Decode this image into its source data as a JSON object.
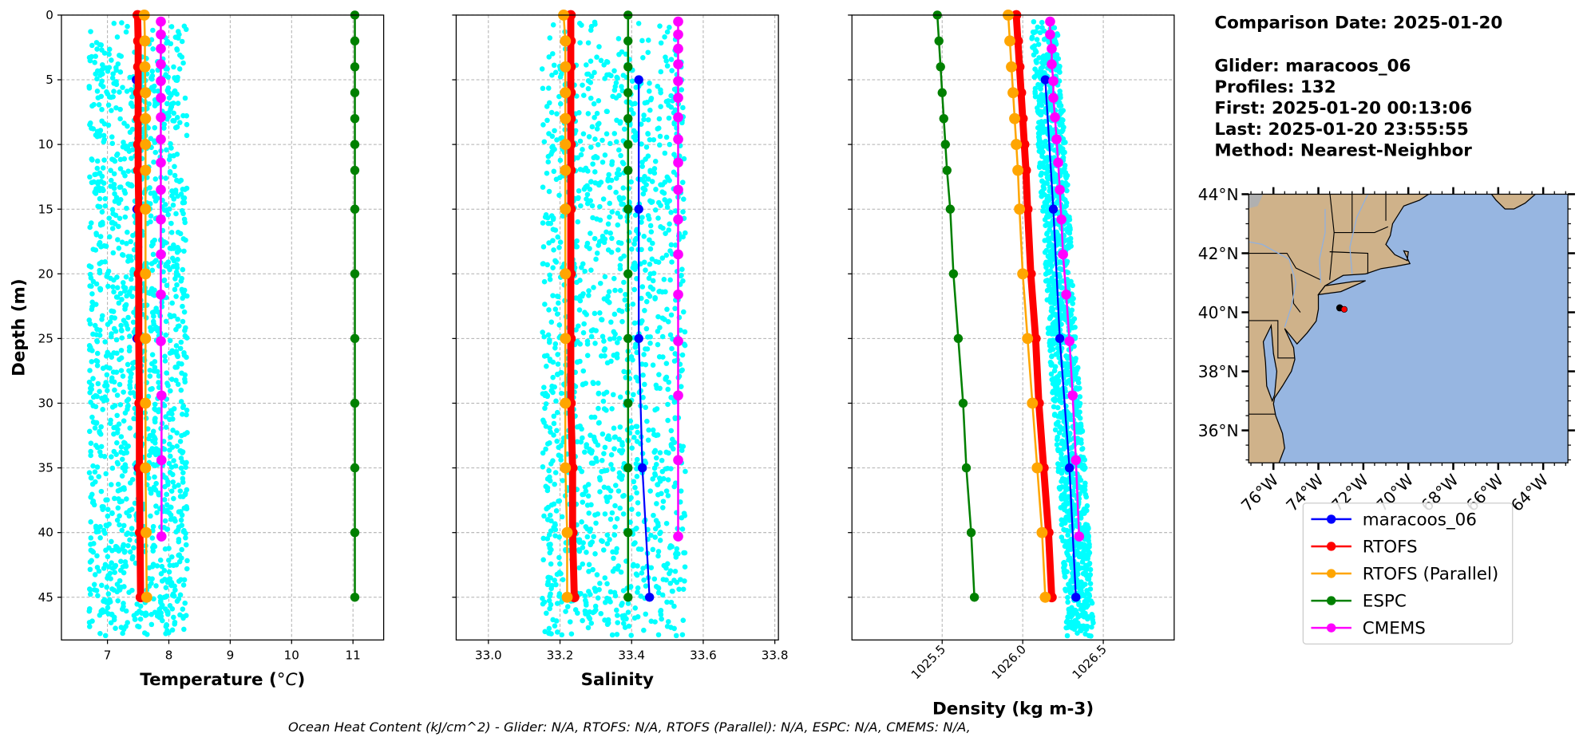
{
  "info": {
    "comparison_date": "Comparison Date: 2025-01-20",
    "glider": "Glider: maracoos_06",
    "profiles": "Profiles: 132",
    "first": "First: 2025-01-20 00:13:06",
    "last": "Last: 2025-01-20 23:55:55",
    "method": "Method: Nearest-Neighbor"
  },
  "footer": "Ocean Heat Content (kJ/cm^2) - Glider: N/A,  RTOFS: N/A,  RTOFS (Parallel): N/A,  ESPC: N/A,  CMEMS: N/A,",
  "colors": {
    "glider": "#0000ff",
    "rtofs": "#ff0000",
    "rtofs_parallel": "#ffa500",
    "espc": "#008000",
    "cmems": "#ff00ff",
    "scatter": "#00ffff",
    "land": "#cfb28a",
    "ocean": "#97b6e1"
  },
  "legend": [
    "maracoos_06",
    "RTOFS",
    "RTOFS (Parallel)",
    "ESPC",
    "CMEMS"
  ],
  "chart_data": [
    {
      "type": "line",
      "xlabel": "Temperature (",
      "xlabel_unit": "°C",
      "xlabel_close": ")",
      "ylabel": "Depth (m)",
      "xlim": [
        6.25,
        11.5
      ],
      "ylim": [
        48.3,
        0
      ],
      "xticks": [
        "7",
        "8",
        "9",
        "10",
        "11"
      ],
      "yticks": [
        "0",
        "5",
        "10",
        "15",
        "20",
        "25",
        "30",
        "35",
        "40",
        "45"
      ],
      "grid": true,
      "glider_scatter_range": [
        6.7,
        8.3
      ],
      "series": [
        {
          "name": "maracoos_06",
          "depth": [
            5,
            15,
            25,
            35,
            45
          ],
          "values": [
            7.47,
            7.48,
            7.48,
            7.5,
            7.58
          ]
        },
        {
          "name": "RTOFS",
          "depth": [
            0,
            2,
            4,
            6,
            8,
            10,
            12,
            15,
            20,
            25,
            30,
            35,
            40,
            45
          ],
          "values": [
            7.49,
            7.5,
            7.5,
            7.5,
            7.5,
            7.5,
            7.5,
            7.51,
            7.51,
            7.51,
            7.52,
            7.52,
            7.53,
            7.54
          ]
        },
        {
          "name": "RTOFS (Parallel)",
          "depth": [
            0,
            2,
            4,
            6,
            8,
            10,
            12,
            15,
            20,
            25,
            30,
            35,
            40,
            45
          ],
          "values": [
            7.6,
            7.61,
            7.61,
            7.62,
            7.62,
            7.62,
            7.62,
            7.62,
            7.62,
            7.62,
            7.62,
            7.62,
            7.63,
            7.64
          ]
        },
        {
          "name": "ESPC",
          "depth": [
            0,
            2,
            4,
            6,
            8,
            10,
            12,
            15,
            20,
            25,
            30,
            35,
            40,
            45
          ],
          "values": [
            11.03,
            11.03,
            11.03,
            11.03,
            11.03,
            11.03,
            11.03,
            11.03,
            11.03,
            11.03,
            11.03,
            11.03,
            11.03,
            11.03
          ]
        },
        {
          "name": "CMEMS",
          "depth": [
            0.5,
            1.5,
            2.6,
            3.8,
            5.1,
            6.4,
            7.9,
            9.6,
            11.4,
            13.5,
            15.8,
            18.5,
            21.6,
            25.2,
            29.4,
            34.4,
            40.3
          ],
          "values": [
            7.87,
            7.87,
            7.87,
            7.87,
            7.87,
            7.87,
            7.87,
            7.87,
            7.87,
            7.87,
            7.87,
            7.87,
            7.87,
            7.87,
            7.88,
            7.88,
            7.88
          ]
        }
      ]
    },
    {
      "type": "line",
      "xlabel": "Salinity",
      "xlim": [
        32.91,
        33.81
      ],
      "ylim": [
        48.3,
        0
      ],
      "xticks": [
        "33.0",
        "33.2",
        "33.4",
        "33.6",
        "33.8"
      ],
      "grid": true,
      "glider_scatter_range": [
        33.15,
        33.55
      ],
      "series": [
        {
          "name": "maracoos_06",
          "depth": [
            5,
            15,
            25,
            35,
            45
          ],
          "values": [
            33.42,
            33.42,
            33.42,
            33.43,
            33.45
          ]
        },
        {
          "name": "RTOFS",
          "depth": [
            0,
            2,
            4,
            6,
            8,
            10,
            12,
            15,
            20,
            25,
            30,
            35,
            40,
            45
          ],
          "values": [
            33.23,
            33.23,
            33.23,
            33.23,
            33.23,
            33.23,
            33.23,
            33.23,
            33.23,
            33.23,
            33.23,
            33.235,
            33.235,
            33.24
          ]
        },
        {
          "name": "RTOFS (Parallel)",
          "depth": [
            0,
            2,
            4,
            6,
            8,
            10,
            12,
            15,
            20,
            25,
            30,
            35,
            40,
            45
          ],
          "values": [
            33.21,
            33.215,
            33.215,
            33.215,
            33.215,
            33.215,
            33.215,
            33.215,
            33.215,
            33.215,
            33.215,
            33.215,
            33.22,
            33.22
          ]
        },
        {
          "name": "ESPC",
          "depth": [
            0,
            2,
            4,
            6,
            8,
            10,
            12,
            15,
            20,
            25,
            30,
            35,
            40,
            45
          ],
          "values": [
            33.39,
            33.39,
            33.39,
            33.39,
            33.39,
            33.39,
            33.39,
            33.39,
            33.39,
            33.39,
            33.39,
            33.39,
            33.39,
            33.39
          ]
        },
        {
          "name": "CMEMS",
          "depth": [
            0.5,
            1.5,
            2.6,
            3.8,
            5.1,
            6.4,
            7.9,
            9.6,
            11.4,
            13.5,
            15.8,
            18.5,
            21.6,
            25.2,
            29.4,
            34.4,
            40.3
          ],
          "values": [
            33.53,
            33.53,
            33.53,
            33.53,
            33.53,
            33.53,
            33.53,
            33.53,
            33.53,
            33.53,
            33.53,
            33.53,
            33.53,
            33.53,
            33.53,
            33.53,
            33.53
          ]
        }
      ]
    },
    {
      "type": "line",
      "xlabel": "Density (kg m-3)",
      "xlim": [
        1024.94,
        1026.94
      ],
      "ylim": [
        48.3,
        0
      ],
      "xticks": [
        "1025.5",
        "1026.0",
        "1026.5"
      ],
      "grid": true,
      "glider_scatter_offset": [
        -0.07,
        0.1
      ],
      "series": [
        {
          "name": "maracoos_06",
          "depth": [
            5,
            15,
            25,
            35,
            45
          ],
          "values": [
            1026.14,
            1026.19,
            1026.23,
            1026.29,
            1026.33
          ]
        },
        {
          "name": "RTOFS",
          "depth": [
            0,
            2,
            4,
            6,
            8,
            10,
            12,
            15,
            20,
            25,
            30,
            35,
            40,
            45
          ],
          "values": [
            1025.96,
            1025.97,
            1025.98,
            1025.99,
            1026.0,
            1026.01,
            1026.02,
            1026.03,
            1026.05,
            1026.08,
            1026.1,
            1026.13,
            1026.16,
            1026.18
          ]
        },
        {
          "name": "RTOFS (Parallel)",
          "depth": [
            0,
            2,
            4,
            6,
            8,
            10,
            12,
            15,
            20,
            25,
            30,
            35,
            40,
            45
          ],
          "values": [
            1025.91,
            1025.92,
            1025.93,
            1025.94,
            1025.95,
            1025.96,
            1025.97,
            1025.98,
            1026.0,
            1026.03,
            1026.06,
            1026.09,
            1026.12,
            1026.14
          ]
        },
        {
          "name": "ESPC",
          "depth": [
            0,
            2,
            4,
            6,
            8,
            10,
            12,
            15,
            20,
            25,
            30,
            35,
            40,
            45
          ],
          "values": [
            1025.47,
            1025.48,
            1025.49,
            1025.5,
            1025.51,
            1025.52,
            1025.53,
            1025.55,
            1025.57,
            1025.6,
            1025.63,
            1025.65,
            1025.68,
            1025.7
          ]
        },
        {
          "name": "CMEMS",
          "depth": [
            0.5,
            1.5,
            2.6,
            3.8,
            5.1,
            6.4,
            7.9,
            9.6,
            11.4,
            13.5,
            15.8,
            18.5,
            21.6,
            25.2,
            29.4,
            34.4,
            40.3
          ],
          "values": [
            1026.17,
            1026.17,
            1026.18,
            1026.18,
            1026.19,
            1026.19,
            1026.2,
            1026.21,
            1026.22,
            1026.23,
            1026.24,
            1026.25,
            1026.27,
            1026.29,
            1026.31,
            1026.33,
            1026.35
          ]
        }
      ]
    },
    {
      "type": "map",
      "lon_range": [
        -77.1,
        -62.9
      ],
      "lat_range": [
        34.9,
        44.0
      ],
      "lat_ticks": [
        "36°N",
        "38°N",
        "40°N",
        "42°N",
        "44°N"
      ],
      "lon_ticks": [
        "76°W",
        "74°W",
        "72°W",
        "70°W",
        "68°W",
        "66°W",
        "64°W"
      ],
      "glider_position": {
        "lon": -72.85,
        "lat": 40.1
      }
    }
  ]
}
